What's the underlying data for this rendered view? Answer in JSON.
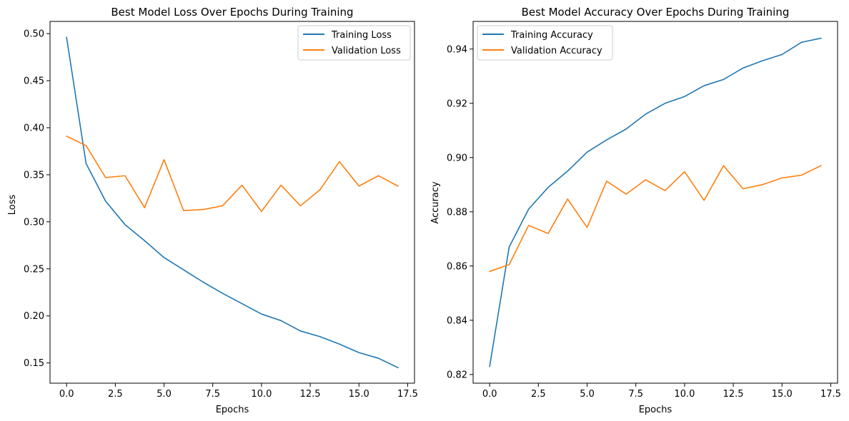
{
  "chart_data": [
    {
      "type": "line",
      "title": "Best Model Loss Over Epochs During Training",
      "xlabel": "Epochs",
      "ylabel": "Loss",
      "xlim": [
        -0.85,
        17.85
      ],
      "ylim": [
        0.1285,
        0.513
      ],
      "xticks": [
        0,
        2.5,
        5,
        7.5,
        10,
        12.5,
        15,
        17.5
      ],
      "xtick_labels": [
        "0.0",
        "2.5",
        "5.0",
        "7.5",
        "10.0",
        "12.5",
        "15.0",
        "17.5"
      ],
      "yticks": [
        0.15,
        0.2,
        0.25,
        0.3,
        0.35,
        0.4,
        0.45,
        0.5
      ],
      "ytick_labels": [
        "0.15",
        "0.20",
        "0.25",
        "0.30",
        "0.35",
        "0.40",
        "0.45",
        "0.50"
      ],
      "grid": false,
      "legend": "top-right",
      "x": [
        0,
        1,
        2,
        3,
        4,
        5,
        6,
        7,
        8,
        9,
        10,
        11,
        12,
        13,
        14,
        15,
        16,
        17
      ],
      "series": [
        {
          "name": "Training Loss",
          "color": "#1f77b4",
          "values": [
            0.496,
            0.362,
            0.322,
            0.297,
            0.28,
            0.262,
            0.249,
            0.236,
            0.224,
            0.213,
            0.202,
            0.195,
            0.184,
            0.178,
            0.17,
            0.161,
            0.155,
            0.145
          ]
        },
        {
          "name": "Validation Loss",
          "color": "#ff7f0e",
          "values": [
            0.391,
            0.381,
            0.347,
            0.349,
            0.315,
            0.366,
            0.312,
            0.313,
            0.317,
            0.339,
            0.311,
            0.339,
            0.317,
            0.334,
            0.364,
            0.338,
            0.349,
            0.338
          ]
        }
      ]
    },
    {
      "type": "line",
      "title": "Best Model Accuracy Over Epochs During Training",
      "xlabel": "Epochs",
      "ylabel": "Accuracy",
      "xlim": [
        -0.85,
        17.85
      ],
      "ylim": [
        0.8168,
        0.9502
      ],
      "xticks": [
        0,
        2.5,
        5,
        7.5,
        10,
        12.5,
        15,
        17.5
      ],
      "xtick_labels": [
        "0.0",
        "2.5",
        "5.0",
        "7.5",
        "10.0",
        "12.5",
        "15.0",
        "17.5"
      ],
      "yticks": [
        0.82,
        0.84,
        0.86,
        0.88,
        0.9,
        0.92,
        0.94
      ],
      "ytick_labels": [
        "0.82",
        "0.84",
        "0.86",
        "0.88",
        "0.90",
        "0.92",
        "0.94"
      ],
      "grid": false,
      "legend": "top-left",
      "x": [
        0,
        1,
        2,
        3,
        4,
        5,
        6,
        7,
        8,
        9,
        10,
        11,
        12,
        13,
        14,
        15,
        16,
        17
      ],
      "series": [
        {
          "name": "Training Accuracy",
          "color": "#1f77b4",
          "values": [
            0.823,
            0.867,
            0.881,
            0.889,
            0.895,
            0.902,
            0.9065,
            0.9105,
            0.916,
            0.92,
            0.9225,
            0.9265,
            0.9288,
            0.933,
            0.9357,
            0.938,
            0.9425,
            0.944
          ]
        },
        {
          "name": "Validation Accuracy",
          "color": "#ff7f0e",
          "values": [
            0.858,
            0.8605,
            0.875,
            0.872,
            0.8847,
            0.8742,
            0.8913,
            0.8865,
            0.8918,
            0.8878,
            0.8948,
            0.8842,
            0.897,
            0.8885,
            0.89,
            0.8925,
            0.8935,
            0.897
          ]
        }
      ]
    }
  ]
}
